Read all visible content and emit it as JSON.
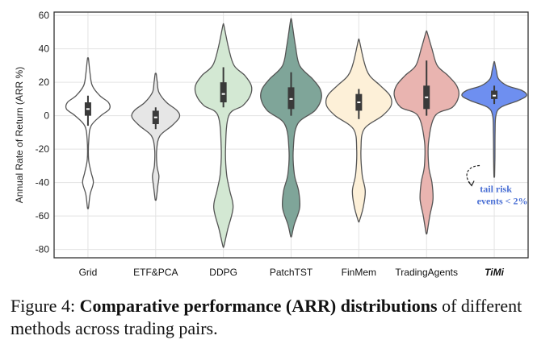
{
  "chart_data": {
    "type": "violin",
    "ylabel": "Annual Rate of Return (ARR %)",
    "ylim": [
      -85,
      62
    ],
    "yticks": [
      -80,
      -60,
      -40,
      -20,
      0,
      20,
      40,
      60
    ],
    "grid": true,
    "categories": [
      "Grid",
      "ETF&PCA",
      "DDPG",
      "PatchTST",
      "FinMem",
      "TradingAgents",
      "TiMi"
    ],
    "highlight_category": "TiMi",
    "series": [
      {
        "category": "Grid",
        "color": "#ffffff",
        "min": -55,
        "max": 34,
        "q1": 0,
        "median": 4,
        "q3": 8,
        "whisker_low": -6,
        "whisker_high": 12,
        "shape": [
          [
            -55,
            0.5
          ],
          [
            -47,
            2
          ],
          [
            -40,
            5
          ],
          [
            -34,
            3
          ],
          [
            -26,
            0.6
          ],
          [
            -14,
            0.8
          ],
          [
            -6,
            3
          ],
          [
            0,
            12
          ],
          [
            4,
            20
          ],
          [
            8,
            19
          ],
          [
            12,
            11
          ],
          [
            18,
            4
          ],
          [
            25,
            2
          ],
          [
            34,
            0.5
          ]
        ]
      },
      {
        "category": "ETF&PCA",
        "color": "#e6e6e6",
        "min": -50,
        "max": 25,
        "q1": -5,
        "median": -1,
        "q3": 3,
        "whisker_low": -8,
        "whisker_high": 5,
        "shape": [
          [
            -50,
            0.5
          ],
          [
            -42,
            2
          ],
          [
            -36,
            3
          ],
          [
            -30,
            1.2
          ],
          [
            -20,
            1
          ],
          [
            -12,
            4
          ],
          [
            -6,
            15
          ],
          [
            -1,
            22
          ],
          [
            3,
            20
          ],
          [
            8,
            10
          ],
          [
            14,
            3
          ],
          [
            20,
            1.5
          ],
          [
            25,
            0.5
          ]
        ]
      },
      {
        "category": "DDPG",
        "color": "#d3e8d3",
        "min": -78,
        "max": 54,
        "q1": 8,
        "median": 13,
        "q3": 20,
        "whisker_low": 5,
        "whisker_high": 29,
        "shape": [
          [
            -78,
            0.5
          ],
          [
            -68,
            4
          ],
          [
            -55,
            9
          ],
          [
            -45,
            6
          ],
          [
            -35,
            3
          ],
          [
            -20,
            2
          ],
          [
            0,
            5
          ],
          [
            6,
            18
          ],
          [
            12,
            25
          ],
          [
            18,
            26
          ],
          [
            24,
            20
          ],
          [
            30,
            10
          ],
          [
            40,
            5
          ],
          [
            54,
            0.5
          ]
        ]
      },
      {
        "category": "PatchTST",
        "color": "#7fa599",
        "min": -72,
        "max": 57,
        "q1": 4,
        "median": 10,
        "q3": 17,
        "whisker_low": 0,
        "whisker_high": 26,
        "shape": [
          [
            -72,
            0.5
          ],
          [
            -65,
            3
          ],
          [
            -55,
            8
          ],
          [
            -45,
            7
          ],
          [
            -35,
            3
          ],
          [
            -20,
            2
          ],
          [
            -5,
            6
          ],
          [
            3,
            22
          ],
          [
            10,
            28
          ],
          [
            16,
            27
          ],
          [
            22,
            20
          ],
          [
            30,
            8
          ],
          [
            42,
            4
          ],
          [
            57,
            0.5
          ]
        ]
      },
      {
        "category": "FinMem",
        "color": "#fdf0d8",
        "min": -63,
        "max": 45,
        "q1": 3,
        "median": 8,
        "q3": 13,
        "whisker_low": -2,
        "whisker_high": 16,
        "shape": [
          [
            -63,
            0.5
          ],
          [
            -55,
            4
          ],
          [
            -45,
            6
          ],
          [
            -35,
            3
          ],
          [
            -20,
            2
          ],
          [
            -8,
            5
          ],
          [
            0,
            22
          ],
          [
            6,
            30
          ],
          [
            12,
            29
          ],
          [
            18,
            20
          ],
          [
            24,
            10
          ],
          [
            32,
            5
          ],
          [
            45,
            0.5
          ]
        ]
      },
      {
        "category": "TradingAgents",
        "color": "#e9b4b0",
        "min": -70,
        "max": 50,
        "q1": 4,
        "median": 11,
        "q3": 18,
        "whisker_low": 0,
        "whisker_high": 33,
        "shape": [
          [
            -70,
            0.5
          ],
          [
            -60,
            3
          ],
          [
            -50,
            6
          ],
          [
            -40,
            5
          ],
          [
            -30,
            2
          ],
          [
            -15,
            2
          ],
          [
            0,
            8
          ],
          [
            5,
            24
          ],
          [
            12,
            30
          ],
          [
            18,
            28
          ],
          [
            24,
            20
          ],
          [
            30,
            10
          ],
          [
            40,
            5
          ],
          [
            50,
            0.5
          ]
        ]
      },
      {
        "category": "TiMi",
        "color": "#6e8ff0",
        "min": -36,
        "max": 32,
        "q1": 10,
        "median": 12,
        "q3": 15,
        "whisker_low": 7,
        "whisker_high": 18,
        "shape": [
          [
            -36,
            0.3
          ],
          [
            -25,
            0.6
          ],
          [
            -10,
            0.8
          ],
          [
            0,
            1.5
          ],
          [
            5,
            6
          ],
          [
            9,
            22
          ],
          [
            12,
            30
          ],
          [
            15,
            26
          ],
          [
            18,
            12
          ],
          [
            22,
            4
          ],
          [
            27,
            2
          ],
          [
            32,
            0.3
          ]
        ]
      }
    ],
    "annotation": {
      "text_line1": "tail risk",
      "text_line2": "events < 2%",
      "color": "#4a6fd4",
      "anchor_category": "TiMi",
      "anchor_value": -38
    }
  },
  "caption": {
    "label": "Figure 4: ",
    "title": "Comparative performance (ARR) distributions",
    "text": "of different methods across trading pairs."
  }
}
